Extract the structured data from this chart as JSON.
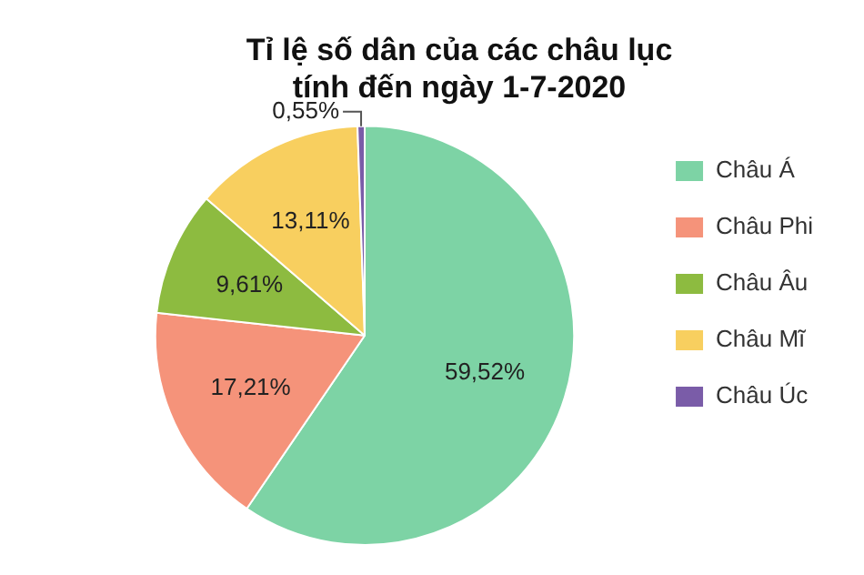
{
  "chart_data": {
    "type": "pie",
    "title": "Tỉ lệ số dân của các châu lục\ntính đến ngày 1-7-2020",
    "categories": [
      "Châu Á",
      "Châu Phi",
      "Châu Âu",
      "Châu Mĩ",
      "Châu Úc"
    ],
    "values": [
      59.52,
      17.21,
      9.61,
      13.11,
      0.55
    ],
    "value_labels": [
      "59,52%",
      "17,21%",
      "9,61%",
      "13,11%",
      "0,55%"
    ],
    "colors": [
      "#7dd3a5",
      "#f5937a",
      "#8dbb40",
      "#f8cf5f",
      "#7a5ca8"
    ],
    "legend": "right"
  }
}
